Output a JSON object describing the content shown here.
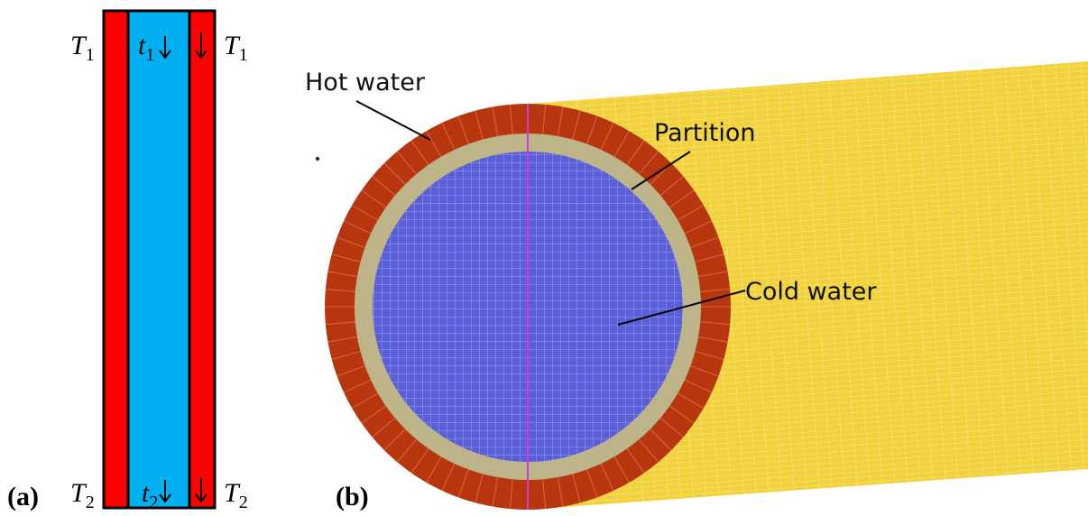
{
  "panel_a": {
    "tag": "(a)",
    "labels": [
      {
        "symbol": "T",
        "sub": "1"
      },
      {
        "symbol": "t",
        "sub": "1"
      },
      {
        "symbol": "T",
        "sub": "1"
      },
      {
        "symbol": "T",
        "sub": "2"
      },
      {
        "symbol": "t",
        "sub": "2"
      },
      {
        "symbol": "T",
        "sub": "2"
      }
    ]
  },
  "panel_b": {
    "tag": "(b)",
    "callouts": [
      "Hot water",
      "Partition",
      "Cold water"
    ]
  }
}
